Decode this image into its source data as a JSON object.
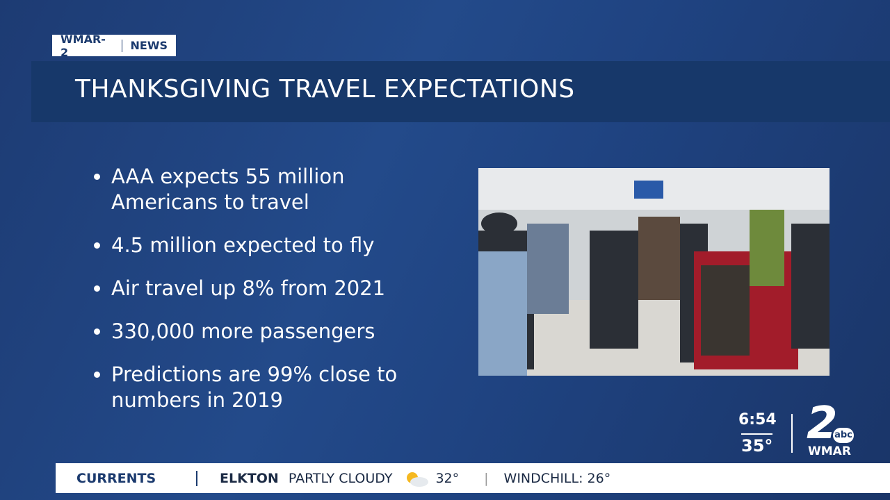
{
  "bug": {
    "station": "WMAR-2",
    "section": "NEWS"
  },
  "title": "THANKSGIVING TRAVEL EXPECTATIONS",
  "bullets": [
    "AAA expects 55 million Americans to travel",
    "4.5 million expected to fly",
    "Air travel up 8% from 2021",
    "330,000 more passengers",
    "Predictions are 99% close to numbers in 2019"
  ],
  "clock": {
    "time": "6:54",
    "temperature": "35°"
  },
  "logo": {
    "number": "2",
    "network": "abc",
    "call_sign": "WMAR"
  },
  "ticker": {
    "segment": "CURRENTS",
    "location": "ELKTON",
    "condition": "PARTLY CLOUDY",
    "temperature": "32°",
    "windchill": "WINDCHILL: 26°"
  }
}
